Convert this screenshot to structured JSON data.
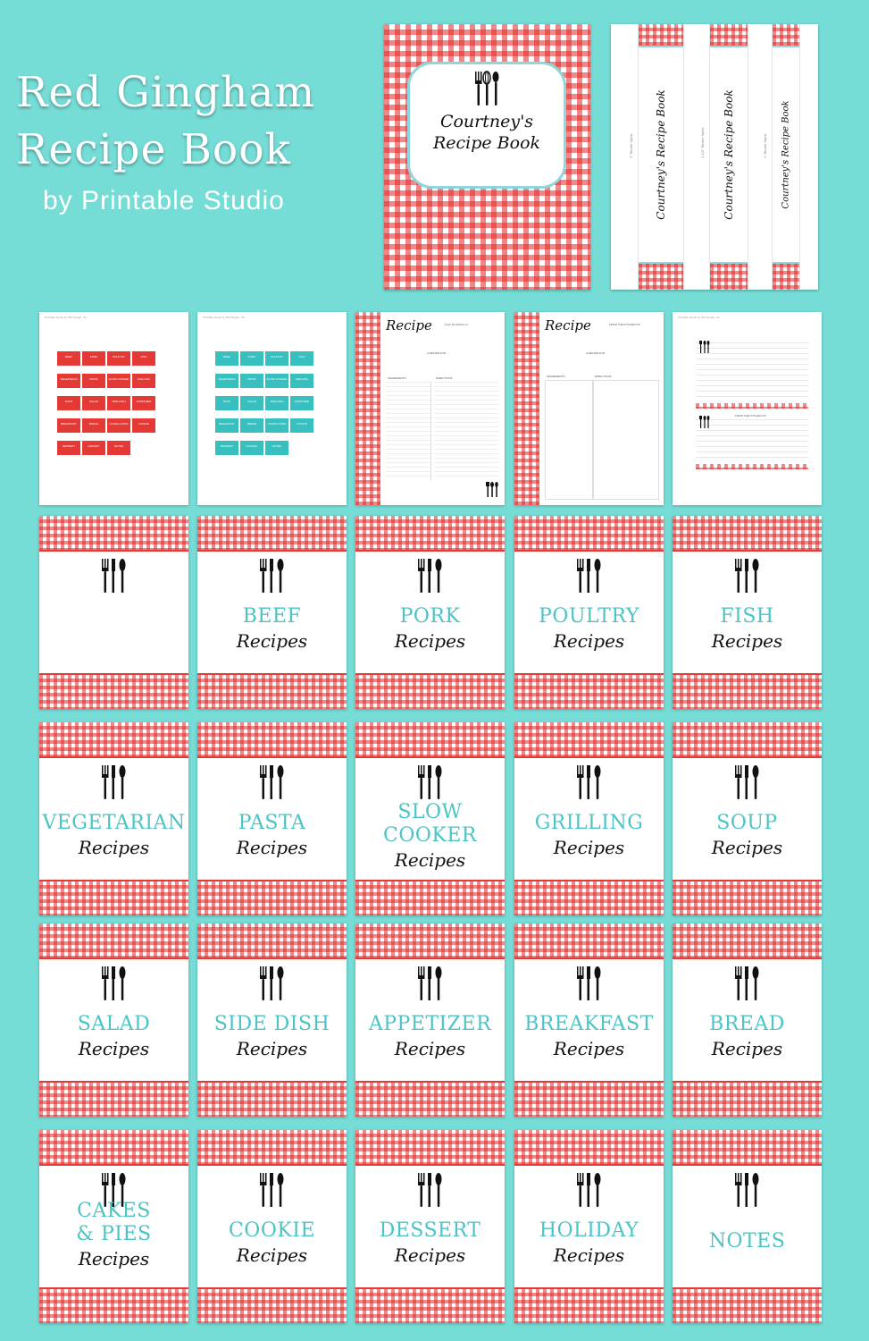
{
  "header": {
    "title_line1": "Red Gingham",
    "title_line2": "Recipe Book",
    "subtitle": "by Printable Studio"
  },
  "colors": {
    "background": "#76dcd6",
    "gingham_red": "#e53935",
    "accent_teal": "#4cc3c4",
    "label_border": "#8fd7dc"
  },
  "cover": {
    "name_line1": "Courtney's",
    "name_line2": "Recipe Book",
    "icon": "utensils-icon"
  },
  "spines": [
    {
      "label": "Courtney's Recipe Book",
      "size": "2\" Binder Spine"
    },
    {
      "label": "Courtney's Recipe Book",
      "size": "1-1/2\" Binder Spine"
    },
    {
      "label": "Courtney's Recipe Book",
      "size": "1\" Binder Spine"
    }
  ],
  "pages": {
    "red_tabs_header": "Printable Studio by 505 Design, Inc",
    "red_tabs_header_right": "Recipe Book Divider Tabs",
    "red_tabs": [
      "BEEF",
      "PORK",
      "POULTRY",
      "FISH",
      "VEGETARIAN",
      "PASTA",
      "SLOW COOKER",
      "GRILLING",
      "SOUP",
      "SALAD",
      "SIDE DISH",
      "APPETIZER",
      "BREAKFAST",
      "BREAD",
      "CAKES & PIES",
      "COOKIE",
      "DESSERT",
      "HOLIDAY",
      "NOTES"
    ],
    "teal_tabs": [
      "BEEF",
      "PORK",
      "POULTRY",
      "FISH",
      "VEGETARIAN",
      "PASTA",
      "SLOW COOKER",
      "GRILLING",
      "SOUP",
      "SALAD",
      "SIDE DISH",
      "APPETIZER",
      "BREAKFAST",
      "BREAD",
      "CAKES & PIES",
      "COOKIE",
      "DESSERT",
      "HOLIDAY",
      "NOTES"
    ],
    "recipe_title": "Recipe",
    "recipe_from": "From the kitchen of",
    "recipe_for": "A RECIPE FOR",
    "ingredients": "INGREDIENTS",
    "directions": "DIRECTIONS",
    "card_from": "FROM THE KITCHEN OF",
    "card_header_right": "4 x 6 Recipe Cards"
  },
  "dividers": [
    {
      "category": "",
      "sub": ""
    },
    {
      "category": "BEEF",
      "sub": "Recipes"
    },
    {
      "category": "PORK",
      "sub": "Recipes"
    },
    {
      "category": "POULTRY",
      "sub": "Recipes"
    },
    {
      "category": "FISH",
      "sub": "Recipes"
    },
    {
      "category": "VEGETARIAN",
      "sub": "Recipes"
    },
    {
      "category": "PASTA",
      "sub": "Recipes"
    },
    {
      "category": "SLOW COOKER",
      "sub": "Recipes"
    },
    {
      "category": "GRILLING",
      "sub": "Recipes"
    },
    {
      "category": "SOUP",
      "sub": "Recipes"
    },
    {
      "category": "SALAD",
      "sub": "Recipes"
    },
    {
      "category": "SIDE DISH",
      "sub": "Recipes"
    },
    {
      "category": "APPETIZER",
      "sub": "Recipes"
    },
    {
      "category": "BREAKFAST",
      "sub": "Recipes"
    },
    {
      "category": "BREAD",
      "sub": "Recipes"
    },
    {
      "category": "CAKES & PIES",
      "sub": "Recipes"
    },
    {
      "category": "COOKIE",
      "sub": "Recipes"
    },
    {
      "category": "DESSERT",
      "sub": "Recipes"
    },
    {
      "category": "HOLIDAY",
      "sub": "Recipes"
    },
    {
      "category": "NOTES",
      "sub": ""
    }
  ]
}
